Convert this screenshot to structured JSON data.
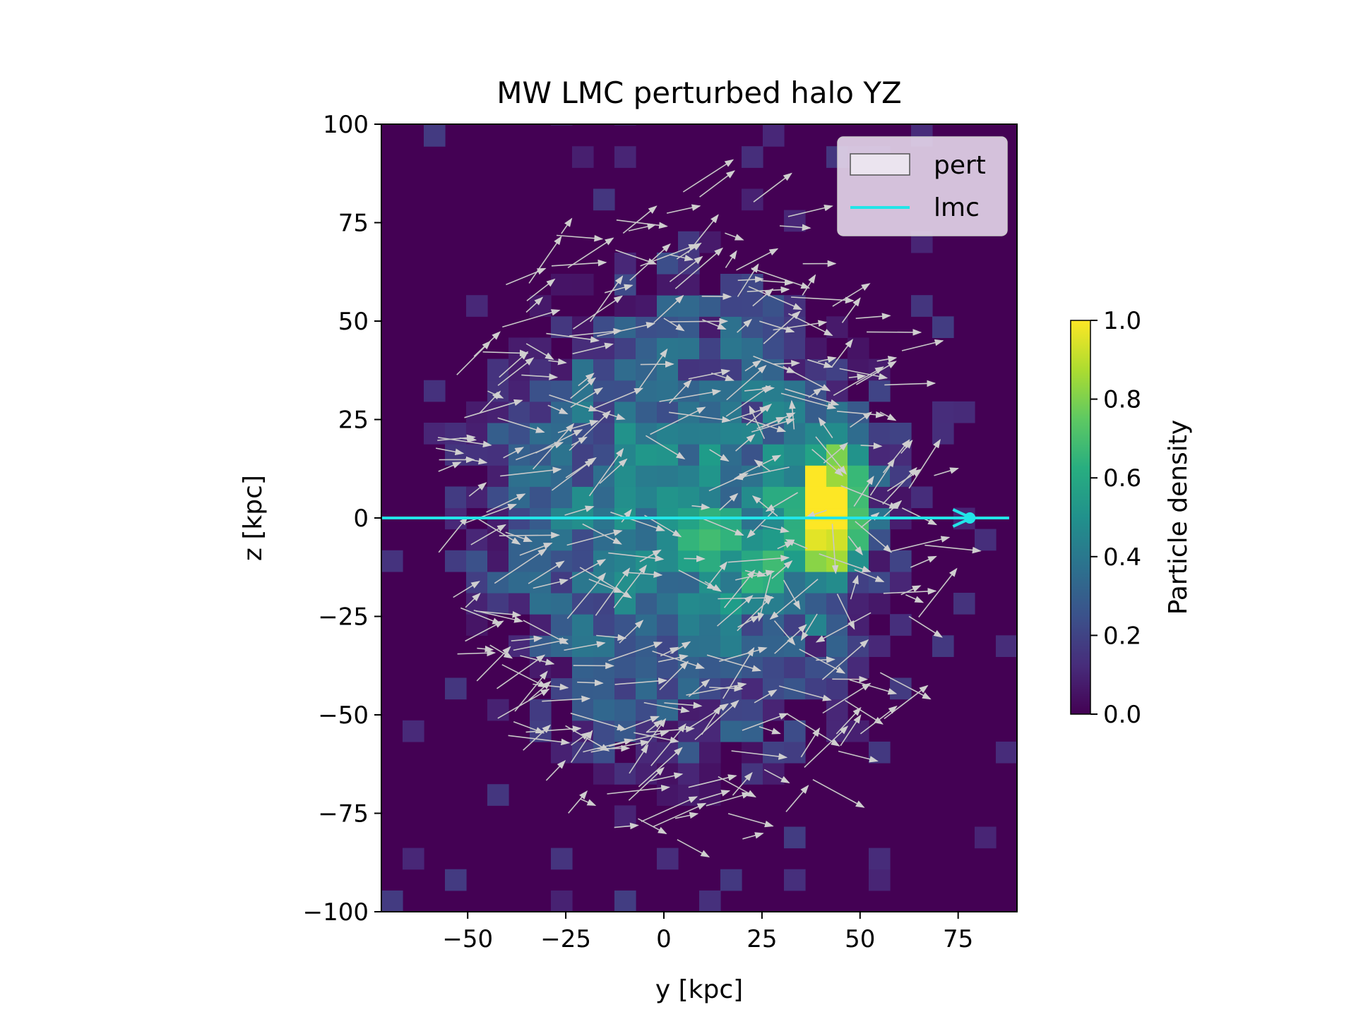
{
  "chart_data": {
    "type": "heatmap",
    "title": "MW LMC perturbed halo YZ",
    "xlabel": "y [kpc]",
    "ylabel": "z [kpc]",
    "xlim": [
      -72,
      90
    ],
    "ylim": [
      -100,
      100
    ],
    "xticks": [
      "−50",
      "−25",
      "0",
      "25",
      "50",
      "75"
    ],
    "xtick_values": [
      -50,
      -25,
      0,
      25,
      50,
      75
    ],
    "yticks": [
      "100",
      "75",
      "50",
      "25",
      "0",
      "−25",
      "−50",
      "−75",
      "−100"
    ],
    "ytick_values": [
      100,
      75,
      50,
      25,
      0,
      -25,
      -50,
      -75,
      -100
    ],
    "bin_size": 5.4,
    "colormap": "viridis",
    "colorbar": {
      "label": "Particle density",
      "range": [
        0,
        1
      ],
      "ticks": [
        "0.0",
        "0.2",
        "0.4",
        "0.6",
        "0.8",
        "1.0"
      ],
      "tick_values": [
        0,
        0.2,
        0.4,
        0.6,
        0.8,
        1.0
      ]
    },
    "legend": {
      "placement": "upper right",
      "entries": [
        {
          "label": "pert",
          "kind": "patch",
          "color": "#e6e0ee"
        },
        {
          "label": "lmc",
          "kind": "line",
          "color": "#22e5e8"
        }
      ]
    },
    "series": [
      {
        "name": "lmc",
        "type": "line",
        "color": "#22e5e8",
        "x": [
          -72,
          78,
          88
        ],
        "y": [
          0,
          0,
          0
        ]
      }
    ],
    "vector_color": "#c8c8c8"
  }
}
